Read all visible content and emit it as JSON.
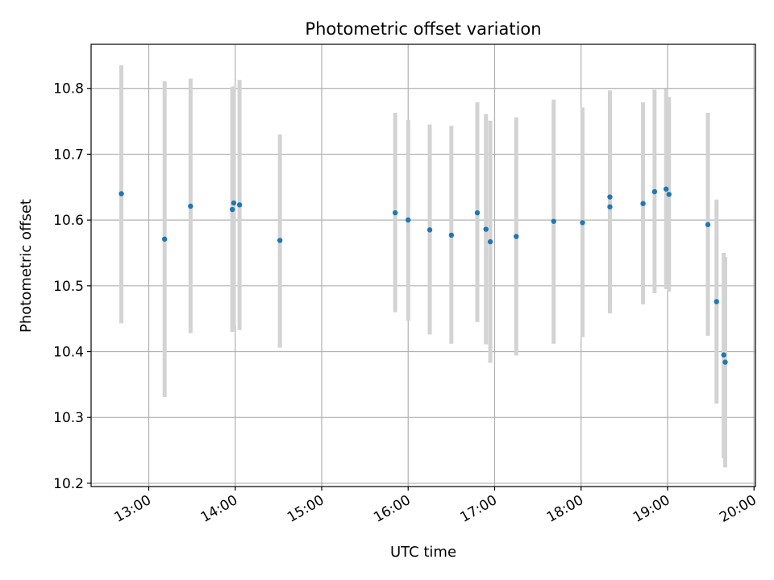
{
  "chart_data": {
    "type": "scatter",
    "title": "Photometric offset variation",
    "xlabel": "UTC time",
    "ylabel": "Photometric offset",
    "x_axis": "time",
    "xlim": [
      "12:20",
      "20:01"
    ],
    "ylim": [
      10.195,
      10.867
    ],
    "x_ticks": [
      "13:00",
      "14:00",
      "15:00",
      "16:00",
      "17:00",
      "18:00",
      "19:00",
      "20:00"
    ],
    "y_ticks": [
      "10.2",
      "10.3",
      "10.4",
      "10.5",
      "10.6",
      "10.7",
      "10.8"
    ],
    "grid": true,
    "point_color": "#1f77b4",
    "errorbar_color": "#d3d3d3",
    "points": [
      {
        "t": "12:41",
        "y": 10.64,
        "lo": 10.443,
        "hi": 10.835
      },
      {
        "t": "13:11",
        "y": 10.571,
        "lo": 10.331,
        "hi": 10.811
      },
      {
        "t": "13:29",
        "y": 10.621,
        "lo": 10.428,
        "hi": 10.815
      },
      {
        "t": "13:58",
        "y": 10.616,
        "lo": 10.43,
        "hi": 10.802
      },
      {
        "t": "13:59",
        "y": 10.626,
        "lo": 10.44,
        "hi": 10.803
      },
      {
        "t": "14:03",
        "y": 10.623,
        "lo": 10.433,
        "hi": 10.813
      },
      {
        "t": "14:31",
        "y": 10.569,
        "lo": 10.406,
        "hi": 10.73
      },
      {
        "t": "15:51",
        "y": 10.611,
        "lo": 10.46,
        "hi": 10.763
      },
      {
        "t": "16:00",
        "y": 10.6,
        "lo": 10.447,
        "hi": 10.752
      },
      {
        "t": "16:15",
        "y": 10.585,
        "lo": 10.426,
        "hi": 10.745
      },
      {
        "t": "16:30",
        "y": 10.577,
        "lo": 10.412,
        "hi": 10.743
      },
      {
        "t": "16:48",
        "y": 10.611,
        "lo": 10.445,
        "hi": 10.779
      },
      {
        "t": "16:54",
        "y": 10.586,
        "lo": 10.411,
        "hi": 10.761
      },
      {
        "t": "16:57",
        "y": 10.567,
        "lo": 10.383,
        "hi": 10.751
      },
      {
        "t": "17:15",
        "y": 10.575,
        "lo": 10.394,
        "hi": 10.756
      },
      {
        "t": "17:41",
        "y": 10.598,
        "lo": 10.412,
        "hi": 10.783
      },
      {
        "t": "18:01",
        "y": 10.596,
        "lo": 10.422,
        "hi": 10.771
      },
      {
        "t": "18:20",
        "y": 10.62,
        "lo": 10.458,
        "hi": 10.782
      },
      {
        "t": "18:20",
        "y": 10.635,
        "lo": 10.472,
        "hi": 10.797
      },
      {
        "t": "18:43",
        "y": 10.625,
        "lo": 10.472,
        "hi": 10.779
      },
      {
        "t": "18:51",
        "y": 10.643,
        "lo": 10.489,
        "hi": 10.798
      },
      {
        "t": "18:59",
        "y": 10.647,
        "lo": 10.495,
        "hi": 10.799
      },
      {
        "t": "19:01",
        "y": 10.639,
        "lo": 10.491,
        "hi": 10.787
      },
      {
        "t": "19:28",
        "y": 10.593,
        "lo": 10.424,
        "hi": 10.763
      },
      {
        "t": "19:34",
        "y": 10.476,
        "lo": 10.321,
        "hi": 10.631
      },
      {
        "t": "19:39",
        "y": 10.395,
        "lo": 10.238,
        "hi": 10.55
      },
      {
        "t": "19:40",
        "y": 10.384,
        "lo": 10.224,
        "hi": 10.544
      }
    ]
  }
}
